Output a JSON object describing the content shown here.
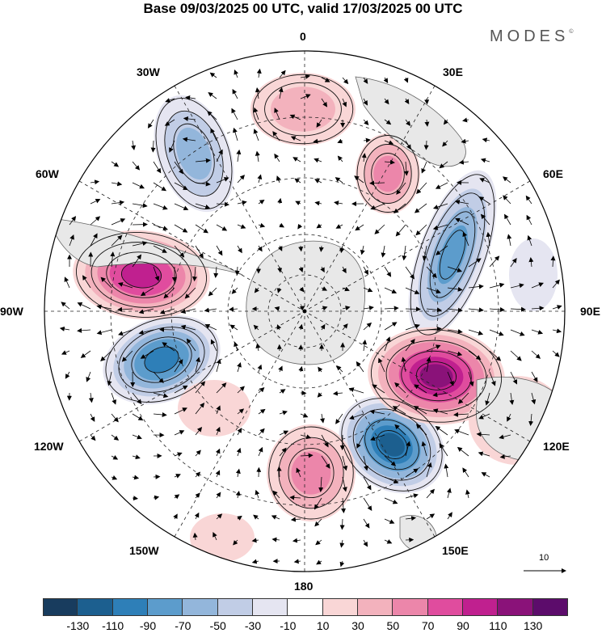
{
  "header": {
    "title": "Base 09/03/2025 00 UTC, valid 17/03/2025 00 UTC",
    "brand": "MODES",
    "brand_mark": "©"
  },
  "map": {
    "projection": "south polar stereographic",
    "longitude_labels": {
      "lon_0": "0",
      "lon_30e": "30E",
      "lon_60e": "60E",
      "lon_90e": "90E",
      "lon_120e": "120E",
      "lon_150e": "150E",
      "lon_180": "180",
      "lon_150w": "150W",
      "lon_120w": "120W",
      "lon_90w": "90W",
      "lon_60w": "60W",
      "lon_30w": "30W"
    },
    "reference_vector": "10",
    "colors": {
      "land": "#e8e8e8",
      "coast": "#666666",
      "grid": "#222222",
      "contour": "#111111"
    }
  },
  "legend": {
    "ticks": [
      "-130",
      "-110",
      "-90",
      "-70",
      "-50",
      "-30",
      "-10",
      "10",
      "30",
      "50",
      "70",
      "90",
      "110",
      "130"
    ],
    "colors": [
      "#183c5e",
      "#1c5f8f",
      "#2e7fb8",
      "#5c9ccc",
      "#93b6db",
      "#c1cde6",
      "#e5e5f1",
      "#ffffff",
      "#f9d6d6",
      "#f3b2bd",
      "#ec86aa",
      "#e04c9e",
      "#c0208f",
      "#8a1279",
      "#5c0c6b"
    ]
  }
}
